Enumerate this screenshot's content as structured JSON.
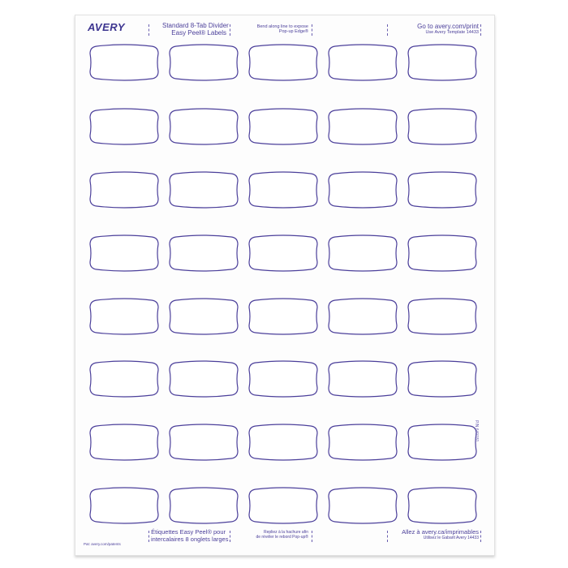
{
  "brand": "AVERY",
  "header": {
    "title_line1": "Standard 8-Tab Divider",
    "title_line2": "Easy Peel® Labels",
    "bend_line1": "Bend along line to expose",
    "bend_line2": "Pop-up Edge®",
    "goto": "Go to avery.com/print",
    "template": "Use Avery Template 14433"
  },
  "footer": {
    "patent": "Pat: avery.com/patents",
    "fr_title_line1": "Étiquettes Easy Peel® pour",
    "fr_title_line2": "intercalaires 8 onglets larges",
    "fr_bend_line1": "Repliez à la hachure afin",
    "fr_bend_line2": "de révéler le rebord Pop-up®",
    "fr_goto": "Allez à avery.ca/imprimables",
    "fr_template": "Utilisez le Gabarit Avery 14433"
  },
  "part_number": "P/N 640181",
  "colors": {
    "label_outline": "#4b3f9a",
    "text": "#4b3f9a"
  }
}
